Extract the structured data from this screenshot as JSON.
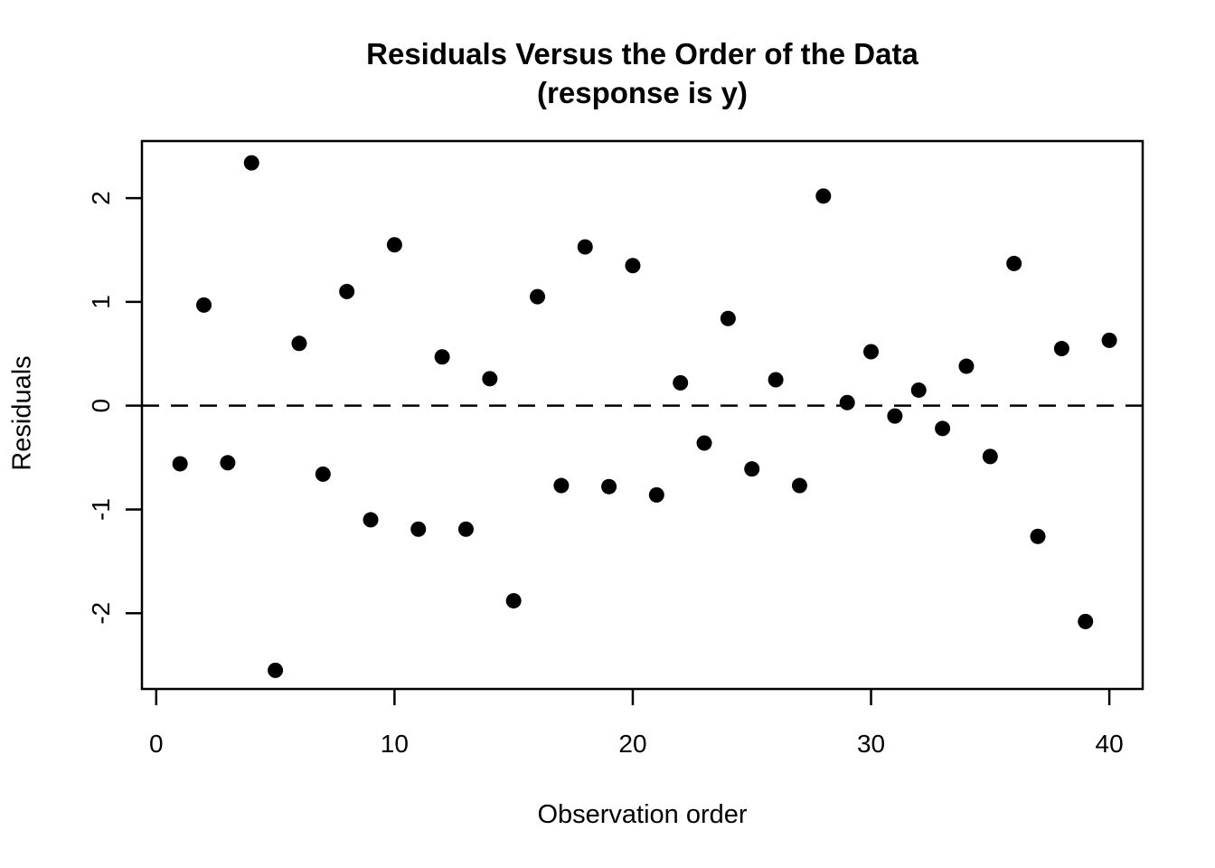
{
  "chart_data": {
    "type": "scatter",
    "title": "Residuals Versus the Order of the Data",
    "subtitle": "(response is y)",
    "xlabel": "Observation order",
    "ylabel": "Residuals",
    "x": [
      1,
      2,
      3,
      4,
      5,
      6,
      7,
      8,
      9,
      10,
      11,
      12,
      13,
      14,
      15,
      16,
      17,
      18,
      19,
      20,
      21,
      22,
      23,
      24,
      25,
      26,
      27,
      28,
      29,
      30,
      31,
      32,
      33,
      34,
      35,
      36,
      37,
      38,
      39,
      40
    ],
    "y": [
      -0.56,
      0.97,
      -0.55,
      2.34,
      -2.55,
      0.6,
      -0.66,
      1.1,
      -1.1,
      1.55,
      -1.19,
      0.47,
      -1.19,
      0.26,
      -1.88,
      1.05,
      -0.77,
      1.53,
      -0.78,
      1.35,
      -0.86,
      0.22,
      -0.36,
      0.84,
      -0.61,
      0.25,
      -0.77,
      2.02,
      0.03,
      0.52,
      -0.1,
      0.15,
      -0.22,
      0.38,
      -0.49,
      1.37,
      -1.26,
      0.55,
      -2.08,
      0.63
    ],
    "x_ticks": [
      0,
      10,
      20,
      30,
      40
    ],
    "y_ticks": [
      -2,
      -1,
      0,
      1,
      2
    ],
    "xlim": [
      -0.6,
      41.4
    ],
    "ylim": [
      -2.73,
      2.55
    ],
    "reference_line_y": 0,
    "reference_line_style": "dashed",
    "grid": false,
    "legend": "none",
    "point_color": "#000000",
    "axis_color": "#000000",
    "background": "#ffffff"
  }
}
